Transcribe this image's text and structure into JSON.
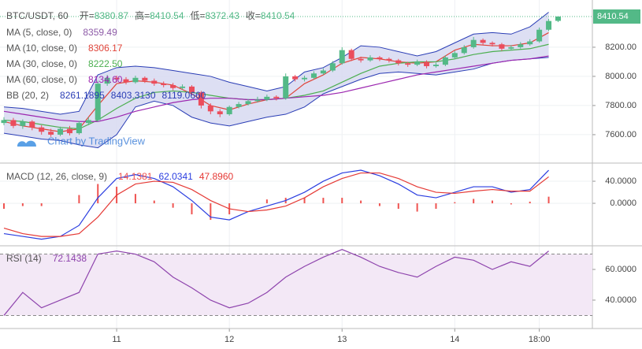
{
  "chart_data": [
    {
      "type": "candlestick",
      "title": "BTC/USDT, 60",
      "ohlc_labels": [
        "开=",
        "高=",
        "低=",
        "收="
      ],
      "x": [
        0,
        2,
        4,
        6,
        8,
        10,
        12,
        14,
        16,
        18,
        20,
        22,
        24,
        26,
        28,
        30,
        32,
        34,
        36,
        38,
        40,
        42,
        44,
        46,
        48,
        50,
        52,
        54,
        56,
        58,
        60,
        62,
        64,
        66,
        68,
        70,
        72,
        74,
        76,
        78,
        80,
        82,
        84,
        86,
        88,
        90,
        92,
        94,
        96,
        98,
        100,
        102,
        104,
        106,
        108,
        110,
        112,
        114,
        116,
        118
      ],
      "open": [
        7680,
        7700,
        7660,
        7690,
        7650,
        7620,
        7600,
        7640,
        7610,
        7680,
        7700,
        7950,
        7990,
        7980,
        7960,
        7990,
        7970,
        7950,
        7940,
        7920,
        7930,
        7890,
        7800,
        7760,
        7740,
        7790,
        7810,
        7830,
        7840,
        7860,
        7850,
        8000,
        7980,
        7990,
        8020,
        8040,
        8090,
        8180,
        8120,
        8110,
        8130,
        8120,
        8110,
        8090,
        8080,
        8100,
        8070,
        8080,
        8130,
        8160,
        8200,
        8250,
        8230,
        8220,
        8190,
        8200,
        8220,
        8240,
        8320,
        8380.87
      ],
      "high": [
        7720,
        7715,
        7705,
        7700,
        7665,
        7640,
        7655,
        7660,
        7695,
        7720,
        7970,
        8010,
        8005,
        7995,
        8005,
        8000,
        7985,
        7965,
        7955,
        7945,
        7940,
        7900,
        7815,
        7775,
        7800,
        7825,
        7845,
        7860,
        7875,
        7870,
        8020,
        8010,
        8005,
        8035,
        8055,
        8105,
        8200,
        8190,
        8135,
        8145,
        8140,
        8130,
        8120,
        8100,
        8115,
        8110,
        8095,
        8145,
        8175,
        8215,
        8270,
        8260,
        8240,
        8230,
        8215,
        8235,
        8255,
        8335,
        8395,
        8410.54
      ],
      "low": [
        7665,
        7645,
        7640,
        7630,
        7600,
        7585,
        7590,
        7595,
        7600,
        7665,
        7690,
        7935,
        7960,
        7945,
        7950,
        7955,
        7935,
        7925,
        7905,
        7910,
        7875,
        7780,
        7740,
        7720,
        7730,
        7780,
        7800,
        7820,
        7830,
        7835,
        7840,
        7965,
        7965,
        7980,
        8010,
        8030,
        8080,
        8105,
        8095,
        8100,
        8105,
        8095,
        8075,
        8065,
        8070,
        8055,
        8060,
        8070,
        8120,
        8150,
        8190,
        8215,
        8205,
        8175,
        8180,
        8190,
        8210,
        8230,
        8310,
        8372.43
      ],
      "close": [
        7700,
        7660,
        7690,
        7650,
        7620,
        7600,
        7640,
        7610,
        7680,
        7700,
        7950,
        7990,
        7980,
        7960,
        7990,
        7970,
        7950,
        7940,
        7920,
        7930,
        7890,
        7800,
        7760,
        7740,
        7790,
        7810,
        7830,
        7840,
        7860,
        7850,
        8000,
        7980,
        7990,
        8020,
        8040,
        8090,
        8180,
        8120,
        8110,
        8130,
        8120,
        8110,
        8090,
        8080,
        8100,
        8070,
        8080,
        8130,
        8160,
        8200,
        8250,
        8230,
        8220,
        8190,
        8200,
        8220,
        8240,
        8320,
        8380,
        8410.54
      ],
      "up_color": "#53b987",
      "down_color": "#eb4d5c",
      "xlim": [
        -0.84,
        125.3
      ],
      "ylim": [
        7405,
        8524
      ],
      "yticks": [
        {
          "value": 7600,
          "label": "7600.00"
        },
        {
          "value": 7800,
          "label": "7800.00"
        },
        {
          "value": 8000,
          "label": "8000.00"
        },
        {
          "value": 8200,
          "label": "8200.00"
        }
      ],
      "grid": true,
      "line_x": [
        0,
        4,
        8,
        12,
        16,
        20,
        24,
        28,
        32,
        36,
        40,
        44,
        48,
        52,
        56,
        60,
        64,
        68,
        72,
        76,
        80,
        84,
        88,
        92,
        96,
        100,
        104,
        108,
        112,
        116
      ],
      "studies": [
        {
          "name": "MA (5, close, 0)",
          "color": "#8e5ca8",
          "last": [
            8359.49
          ]
        },
        {
          "name": "MA (10, close, 0)",
          "color": "#e0453a",
          "last": [
            8306.17
          ],
          "values": [
            7690,
            7660,
            7640,
            7620,
            7640,
            7800,
            7950,
            7970,
            7960,
            7940,
            7880,
            7800,
            7770,
            7810,
            7840,
            7850,
            7950,
            8010,
            8090,
            8130,
            8120,
            8100,
            8090,
            8100,
            8180,
            8220,
            8210,
            8210,
            8230,
            8300
          ]
        },
        {
          "name": "MA (30, close, 0)",
          "color": "#4caf50",
          "last": [
            8222.5
          ],
          "last_labels": [
            "8222.50"
          ],
          "values": [
            7700,
            7690,
            7670,
            7650,
            7640,
            7700,
            7780,
            7850,
            7890,
            7900,
            7890,
            7870,
            7850,
            7840,
            7840,
            7850,
            7870,
            7900,
            7960,
            8020,
            8070,
            8090,
            8100,
            8100,
            8120,
            8150,
            8170,
            8180,
            8190,
            8220
          ]
        },
        {
          "name": "MA (60, close, 0)",
          "color": "#9c27b0",
          "last": [
            8134.6
          ],
          "last_labels": [
            "8134.60"
          ],
          "values": [
            7760,
            7740,
            7720,
            7700,
            7690,
            7690,
            7720,
            7760,
            7790,
            7820,
            7840,
            7850,
            7850,
            7840,
            7840,
            7850,
            7860,
            7870,
            7890,
            7920,
            7950,
            7980,
            8010,
            8030,
            8050,
            8070,
            8090,
            8110,
            8120,
            8140
          ]
        },
        {
          "name": "BB (20, 2)",
          "color": "#2a3db5",
          "fill": "#d7d9f1",
          "last": [
            8261.1895,
            8403.313,
            8119.066
          ],
          "last_labels": [
            "8261.1895",
            "8403.3130",
            "8119.0660"
          ],
          "upper": [
            7790,
            7780,
            7760,
            7740,
            7760,
            8010,
            8060,
            8070,
            8060,
            8040,
            8020,
            8000,
            7960,
            7930,
            7900,
            7930,
            8030,
            8060,
            8130,
            8210,
            8200,
            8170,
            8140,
            8170,
            8230,
            8290,
            8300,
            8290,
            8340,
            8440
          ],
          "lower": [
            7610,
            7590,
            7570,
            7560,
            7530,
            7510,
            7600,
            7790,
            7830,
            7800,
            7720,
            7680,
            7660,
            7690,
            7720,
            7740,
            7790,
            7880,
            7930,
            7980,
            8020,
            8030,
            8020,
            8010,
            8030,
            8050,
            8090,
            8110,
            8120,
            8130
          ]
        }
      ],
      "watermark": "Chart by TradingView"
    },
    {
      "type": "macd",
      "name": "MACD (12, 26, close, 9)",
      "last": [
        14.1381,
        62.0341,
        47.896
      ],
      "last_labels": [
        "14.1381",
        "62.0341",
        "47.8960"
      ],
      "x": [
        0,
        4,
        8,
        12,
        16,
        20,
        24,
        28,
        32,
        36,
        40,
        44,
        48,
        52,
        56,
        60,
        64,
        68,
        72,
        76,
        80,
        84,
        88,
        92,
        96,
        100,
        104,
        108,
        112,
        116
      ],
      "histogram": [
        -10,
        -5,
        -5,
        0,
        15,
        35,
        30,
        17,
        5,
        -8,
        -20,
        -30,
        -20,
        0,
        7,
        10,
        10,
        10,
        10,
        5,
        -5,
        -10,
        -15,
        -10,
        2,
        8,
        5,
        -2,
        3,
        12
      ],
      "macd": [
        -55,
        -60,
        -65,
        -60,
        -40,
        10,
        45,
        52,
        45,
        30,
        5,
        -25,
        -30,
        -15,
        -5,
        5,
        20,
        40,
        55,
        60,
        50,
        35,
        15,
        10,
        20,
        30,
        30,
        20,
        25,
        60
      ],
      "signal": [
        -45,
        -55,
        -60,
        -60,
        -55,
        -25,
        15,
        35,
        40,
        38,
        25,
        5,
        -10,
        -15,
        -12,
        -5,
        10,
        30,
        45,
        55,
        55,
        45,
        30,
        20,
        18,
        22,
        25,
        22,
        22,
        48
      ],
      "colors": [
        "#ef5350",
        "#2a3de0",
        "#e53935"
      ],
      "xlim": [
        -0.84,
        125.3
      ],
      "ylim": [
        -77,
        72.9
      ],
      "yticks": [
        {
          "value": 0,
          "label": "0.0000"
        },
        {
          "value": 40,
          "label": "40.0000"
        }
      ]
    },
    {
      "type": "rsi",
      "name": "RSI (14)",
      "last": [
        72.1438
      ],
      "color": "#8e44ad",
      "band_fill": "#f3e8f6",
      "x": [
        0,
        4,
        8,
        12,
        16,
        20,
        24,
        28,
        32,
        36,
        40,
        44,
        48,
        52,
        56,
        60,
        64,
        68,
        72,
        76,
        80,
        84,
        88,
        92,
        96,
        100,
        104,
        108,
        112,
        116
      ],
      "values": [
        30,
        45,
        35,
        40,
        45,
        70,
        72,
        70,
        65,
        55,
        48,
        40,
        35,
        38,
        45,
        55,
        62,
        68,
        73,
        68,
        62,
        58,
        55,
        62,
        68,
        66,
        60,
        65,
        62,
        72
      ],
      "bands": [
        30,
        70
      ],
      "xlim": [
        -0.84,
        125.3
      ],
      "ylim": [
        21.5,
        75.4
      ],
      "yticks": [
        {
          "value": 40,
          "label": "40.0000"
        },
        {
          "value": 60,
          "label": "60.0000"
        }
      ],
      "xticks": [
        {
          "value": 24,
          "label": "11"
        },
        {
          "value": 48,
          "label": "12"
        },
        {
          "value": 72,
          "label": "13"
        },
        {
          "value": 96,
          "label": "14"
        },
        {
          "value": 114,
          "label": "18:00"
        }
      ]
    }
  ]
}
